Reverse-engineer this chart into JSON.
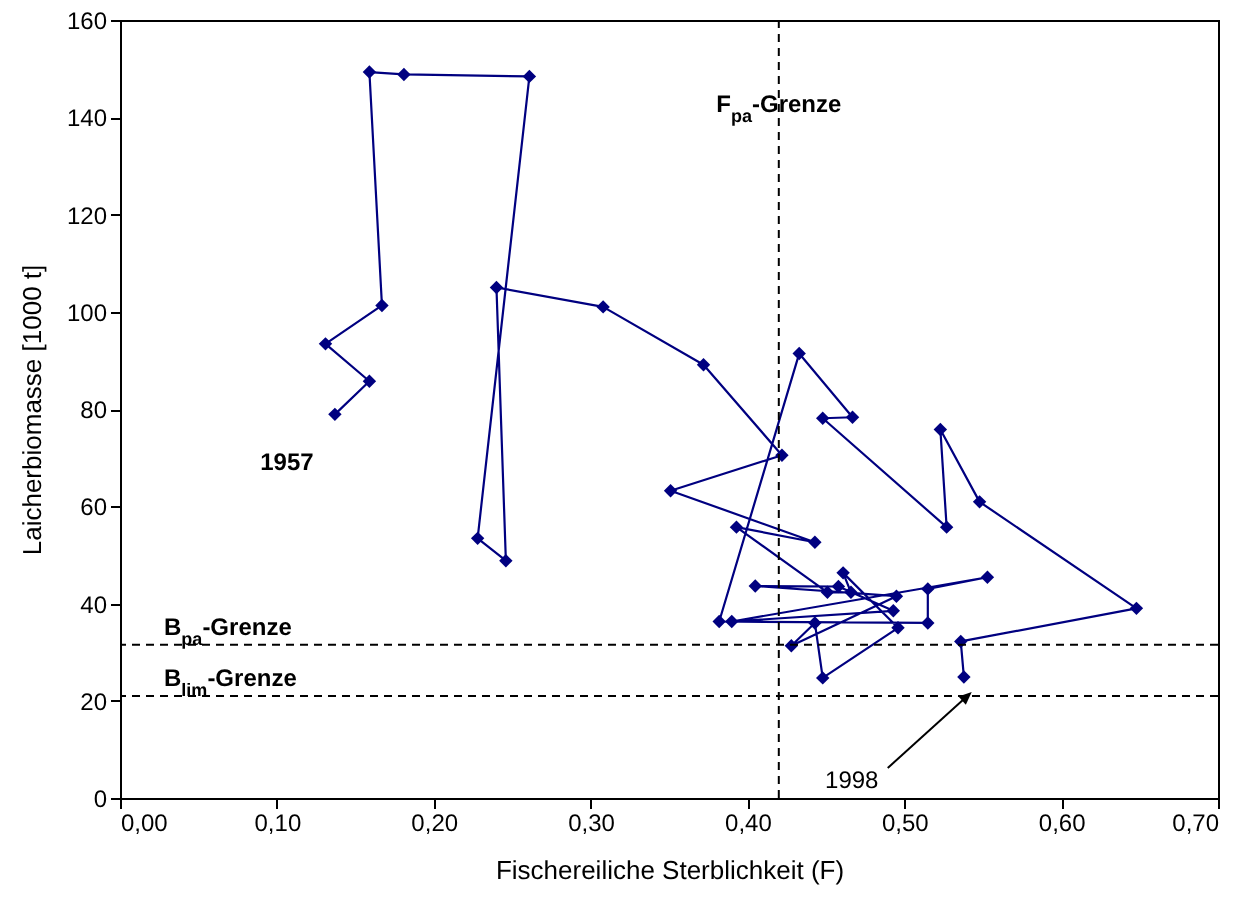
{
  "chart_data": {
    "type": "line",
    "xlabel": "Fischereiliche Sterblichkeit (F)",
    "ylabel": "Laicherbiomasse [1000 t]",
    "series": [
      {
        "color": "#000080",
        "x": [
          0.137,
          0.159,
          0.131,
          0.167,
          0.159,
          0.181,
          0.261,
          0.228,
          0.246,
          0.24,
          0.308,
          0.372,
          0.422,
          0.351,
          0.443,
          0.393,
          0.451,
          0.466,
          0.461,
          0.496,
          0.448,
          0.443,
          0.428,
          0.495,
          0.405,
          0.458,
          0.493,
          0.39,
          0.553,
          0.515,
          0.515,
          0.382,
          0.433,
          0.467,
          0.448,
          0.527,
          0.523,
          0.548,
          0.648,
          0.536,
          0.538
        ],
        "values": [
          78.9,
          85.7,
          93.4,
          101.3,
          149.3,
          148.8,
          148.4,
          53.4,
          48.8,
          105.0,
          101.0,
          89.1,
          70.5,
          63.2,
          52.6,
          55.7,
          42.3,
          42.3,
          46.3,
          35.0,
          24.7,
          36.0,
          31.3,
          41.5,
          43.6,
          43.5,
          38.5,
          36.3,
          45.4,
          43.0,
          36.0,
          36.3,
          91.4,
          78.3,
          78.1,
          55.7,
          75.8,
          60.9,
          39.0,
          32.2,
          24.9
        ]
      }
    ],
    "xlim": [
      0,
      0.7
    ],
    "xticks": [
      {
        "value": 0,
        "label": "0,00"
      },
      {
        "value": 0.1,
        "label": "0,10"
      },
      {
        "value": 0.2,
        "label": "0,20"
      },
      {
        "value": 0.3,
        "label": "0,30"
      },
      {
        "value": 0.4,
        "label": "0,40"
      },
      {
        "value": 0.5,
        "label": "0,50"
      },
      {
        "value": 0.6,
        "label": "0,60"
      },
      {
        "value": 0.7,
        "label": "0,70"
      }
    ],
    "ylim": [
      0,
      160
    ],
    "yticks": [
      0,
      20,
      40,
      60,
      80,
      100,
      120,
      140,
      160
    ],
    "marker": "diamond",
    "line_style": "solid",
    "grid": false,
    "ref_lines": [
      {
        "axis": "x",
        "value": 0.42,
        "label": "F$_{pa}$-Grenze",
        "line_style": "dashed",
        "color": "#000000"
      },
      {
        "axis": "y",
        "value": 31.5,
        "label": "B$_{pa}$-Grenze",
        "line_style": "dashed",
        "color": "#000000"
      },
      {
        "axis": "y",
        "value": 21,
        "label": "B$_{lim}$-Grenze",
        "line_style": "dashed",
        "color": "#000000"
      }
    ],
    "annotations": [
      {
        "text": "1957",
        "x": 0.137,
        "y": 78.9
      },
      {
        "text": "1998",
        "x": 0.543,
        "y": 21.8
      }
    ]
  }
}
